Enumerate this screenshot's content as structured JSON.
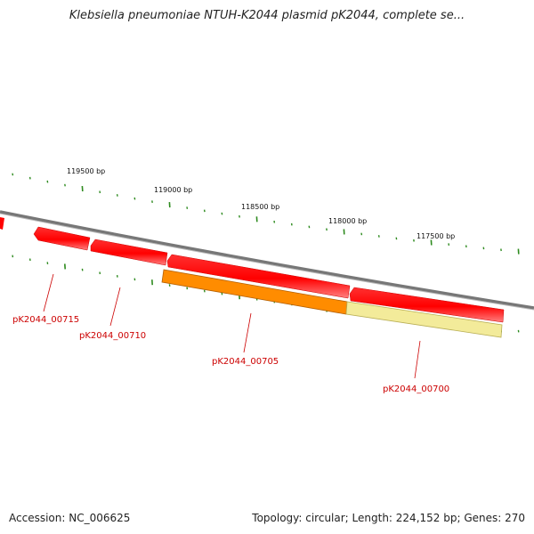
{
  "title": "Klebsiella pneumoniae NTUH-K2044 plasmid pK2044, complete se...",
  "footer": {
    "accession": "Accession: NC_006625",
    "summary": "Topology: circular; Length: 224,152 bp; Genes: 270"
  },
  "ruler": {
    "labels": [
      "119500 bp",
      "119000 bp",
      "118500 bp",
      "118000 bp",
      "117500 bp"
    ]
  },
  "genes": [
    {
      "id": "pK2044_00715",
      "label": "pK2044_00715",
      "strand": "reverse",
      "color": "#ff0000"
    },
    {
      "id": "pK2044_00710",
      "label": "pK2044_00710",
      "strand": "reverse",
      "color": "#ff0000"
    },
    {
      "id": "pK2044_00705",
      "label": "pK2044_00705",
      "strand": "reverse",
      "color": "#ff0000"
    },
    {
      "id": "pK2044_00700",
      "label": "pK2044_00700",
      "strand": "reverse",
      "color": "#ff0000"
    }
  ],
  "features": [
    {
      "color": "#ff8c00"
    },
    {
      "color": "#f0e68c"
    }
  ],
  "colors": {
    "backbone": "#808080",
    "ticks": "#2e8b1f",
    "gene": "#ff0000",
    "label": "#cc0000"
  }
}
